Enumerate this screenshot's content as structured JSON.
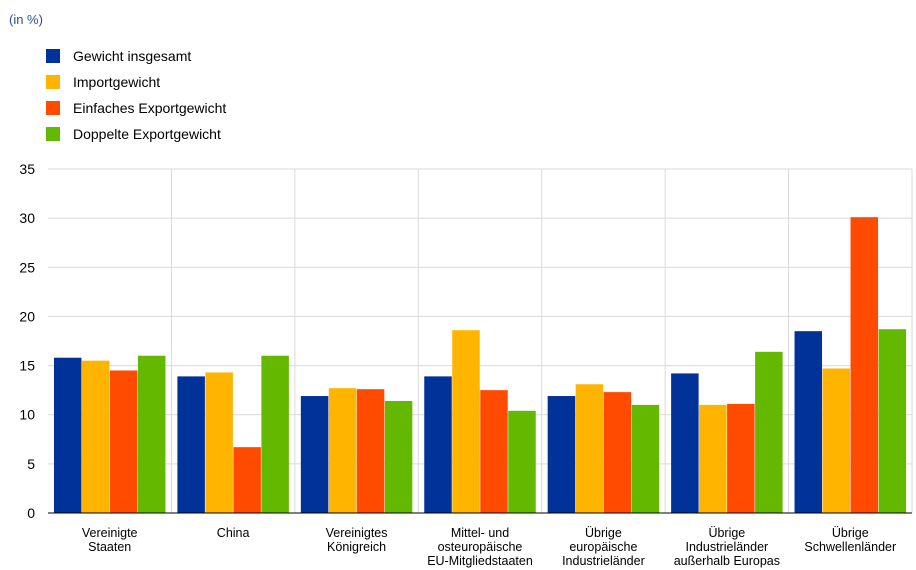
{
  "unit_label": "(in %)",
  "chart_data": {
    "type": "bar",
    "title": "",
    "xlabel": "",
    "ylabel": "",
    "ylim": [
      0,
      35
    ],
    "yticks": [
      0,
      5,
      10,
      15,
      20,
      25,
      30,
      35
    ],
    "grid": true,
    "legend_position": "top-left",
    "categories": [
      [
        "Vereinigte",
        "Staaten"
      ],
      [
        "China"
      ],
      [
        "Vereinigtes",
        "Königreich"
      ],
      [
        "Mittel- und",
        "osteuropäische",
        "EU-Mitgliedstaaten"
      ],
      [
        "Übrige",
        "europäische",
        "Industrieländer"
      ],
      [
        "Übrige",
        "Industrieländer",
        "außerhalb Europas"
      ],
      [
        "Übrige",
        "Schwellenländer"
      ]
    ],
    "series": [
      {
        "name": "Gewicht insgesamt",
        "color": "#003299",
        "values": [
          15.8,
          13.9,
          11.9,
          13.9,
          11.9,
          14.2,
          18.5
        ]
      },
      {
        "name": "Importgewicht",
        "color": "#ffb400",
        "values": [
          15.5,
          14.3,
          12.7,
          18.6,
          13.1,
          11.0,
          14.7
        ]
      },
      {
        "name": "Einfaches Exportgewicht",
        "color": "#ff4b00",
        "values": [
          14.5,
          6.7,
          12.6,
          12.5,
          12.3,
          11.1,
          30.1
        ]
      },
      {
        "name": "Doppelte Exportgewicht",
        "color": "#65b800",
        "values": [
          16.0,
          16.0,
          11.4,
          10.4,
          11.0,
          16.4,
          18.7
        ]
      }
    ]
  }
}
